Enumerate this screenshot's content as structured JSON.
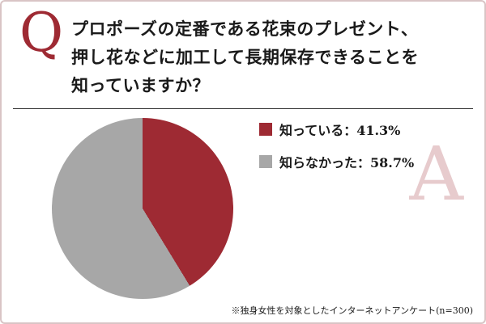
{
  "badges": {
    "question": "Q",
    "answer": "A"
  },
  "title": {
    "line1": "プロポーズの定番である花束のプレゼント、",
    "line2": "押し花などに加工して長期保存できることを",
    "line3": "知っていますか？"
  },
  "footnote": "※独身女性を対象としたインターネットアンケート(n=300)",
  "chart_data": {
    "type": "pie",
    "title": "プロポーズの定番である花束のプレゼント、押し花などに加工して長期保存できることを知っていますか？",
    "labels": [
      "知っている",
      "知らなかった"
    ],
    "values": [
      41.3,
      58.7
    ],
    "colors": [
      "#9e2a33",
      "#a7a7a7"
    ],
    "legend_items": [
      "知っている：41.3%",
      "知らなかった：58.7%"
    ],
    "legend_position": "right",
    "start_angle": "top",
    "direction": "clockwise"
  },
  "colors": {
    "accent_red": "#9e2a33",
    "slice_gray": "#a7a7a7",
    "answer_pink": "#e7cbcd",
    "border": "#d9c4c5"
  }
}
